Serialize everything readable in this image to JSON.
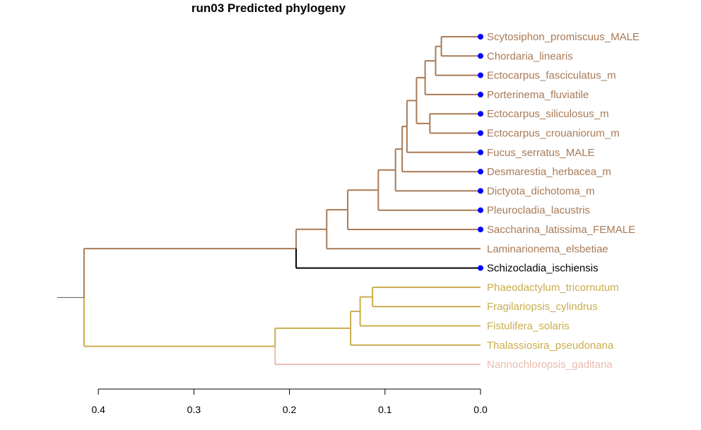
{
  "title": "run03  Predicted phylogeny",
  "colors": {
    "brown": "#a87a56",
    "black": "#000000",
    "gold": "#c9ad4c",
    "pink": "#e8bcae",
    "tip_marker": "#0000ff",
    "axis": "#000000",
    "root_stub": "#555555"
  },
  "tips": [
    {
      "label": "Scytosiphon_promiscuus_MALE",
      "color": "brown",
      "marker": true
    },
    {
      "label": "Chordaria_linearis",
      "color": "brown",
      "marker": true
    },
    {
      "label": "Ectocarpus_fasciculatus_m",
      "color": "brown",
      "marker": true
    },
    {
      "label": "Porterinema_fluviatile",
      "color": "brown",
      "marker": true
    },
    {
      "label": "Ectocarpus_siliculosus_m",
      "color": "brown",
      "marker": true
    },
    {
      "label": "Ectocarpus_crouaniorum_m",
      "color": "brown",
      "marker": true
    },
    {
      "label": "Fucus_serratus_MALE",
      "color": "brown",
      "marker": true
    },
    {
      "label": "Desmarestia_herbacea_m",
      "color": "brown",
      "marker": true
    },
    {
      "label": "Dictyota_dichotoma_m",
      "color": "brown",
      "marker": true
    },
    {
      "label": "Pleurocladia_lacustris",
      "color": "brown",
      "marker": true
    },
    {
      "label": "Saccharina_latissima_FEMALE",
      "color": "brown",
      "marker": true
    },
    {
      "label": "Laminarionema_elsbetiae",
      "color": "brown",
      "marker": false
    },
    {
      "label": "Schizocladia_ischiensis",
      "color": "black",
      "marker": true
    },
    {
      "label": "Phaeodactylum_tricornutum",
      "color": "gold",
      "marker": false
    },
    {
      "label": "Fragilariopsis_cylindrus",
      "color": "gold",
      "marker": false
    },
    {
      "label": "Fistulifera_solaris",
      "color": "gold",
      "marker": false
    },
    {
      "label": "Thalassiosira_pseudonana",
      "color": "gold",
      "marker": false
    },
    {
      "label": "Nannochloropsis_gaditana",
      "color": "pink",
      "marker": false
    }
  ],
  "tree": {
    "depth": 0.415,
    "color": "black",
    "children": [
      {
        "depth": 0.193,
        "color": "brown",
        "children": [
          {
            "depth": 0.161,
            "color": "brown",
            "children": [
              {
                "depth": 0.139,
                "color": "brown",
                "children": [
                  {
                    "depth": 0.107,
                    "color": "brown",
                    "children": [
                      {
                        "depth": 0.089,
                        "color": "brown",
                        "children": [
                          {
                            "depth": 0.082,
                            "color": "brown",
                            "children": [
                              {
                                "depth": 0.077,
                                "color": "brown",
                                "children": [
                                  {
                                    "depth": 0.067,
                                    "color": "brown",
                                    "children": [
                                      {
                                        "depth": 0.058,
                                        "color": "brown",
                                        "children": [
                                          {
                                            "depth": 0.047,
                                            "color": "brown",
                                            "children": [
                                              {
                                                "depth": 0.041,
                                                "color": "brown",
                                                "children": [
                                                  {
                                                    "tip": 0
                                                  },
                                                  {
                                                    "tip": 1
                                                  }
                                                ]
                                              },
                                              {
                                                "tip": 2
                                              }
                                            ]
                                          },
                                          {
                                            "tip": 3
                                          }
                                        ]
                                      },
                                      {
                                        "depth": 0.053,
                                        "color": "brown",
                                        "children": [
                                          {
                                            "tip": 4
                                          },
                                          {
                                            "tip": 5
                                          }
                                        ]
                                      }
                                    ]
                                  },
                                  {
                                    "tip": 6
                                  }
                                ]
                              },
                              {
                                "tip": 7
                              }
                            ]
                          },
                          {
                            "tip": 8
                          }
                        ]
                      },
                      {
                        "tip": 9
                      }
                    ]
                  },
                  {
                    "tip": 10
                  }
                ]
              },
              {
                "tip": 11
              }
            ]
          },
          {
            "tip": 12
          }
        ]
      },
      {
        "depth": 0.215,
        "color": "gold",
        "children": [
          {
            "depth": 0.136,
            "color": "gold",
            "children": [
              {
                "depth": 0.126,
                "color": "gold",
                "children": [
                  {
                    "depth": 0.113,
                    "color": "gold",
                    "children": [
                      {
                        "tip": 13
                      },
                      {
                        "tip": 14
                      }
                    ]
                  },
                  {
                    "tip": 15
                  }
                ]
              },
              {
                "tip": 16
              }
            ]
          },
          {
            "tip": 17
          }
        ]
      }
    ]
  },
  "axis": {
    "ticks": [
      0.4,
      0.3,
      0.2,
      0.1,
      0.0
    ],
    "tick_labels": [
      "0.4",
      "0.3",
      "0.2",
      "0.1",
      "0.0"
    ],
    "range": [
      0.0,
      0.42
    ]
  }
}
